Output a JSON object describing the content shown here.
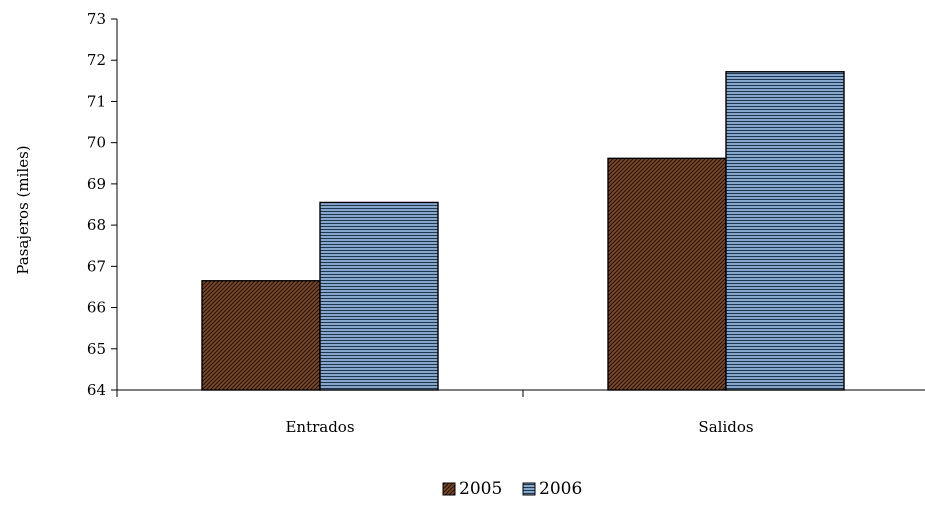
{
  "chart_data": {
    "type": "bar",
    "title": "",
    "xlabel": "",
    "ylabel": "Pasajeros (miles)",
    "ylim": [
      64,
      73
    ],
    "yticks": [
      64,
      65,
      66,
      67,
      68,
      69,
      70,
      71,
      72,
      73
    ],
    "categories": [
      "Entrados",
      "Salidos"
    ],
    "series": [
      {
        "name": "2005",
        "values": [
          66.65,
          69.62
        ],
        "color": "#7a4a2a"
      },
      {
        "name": "2006",
        "values": [
          68.55,
          71.72
        ],
        "color": "#7f9fc6"
      }
    ],
    "grid": false,
    "legend_position": "bottom"
  }
}
